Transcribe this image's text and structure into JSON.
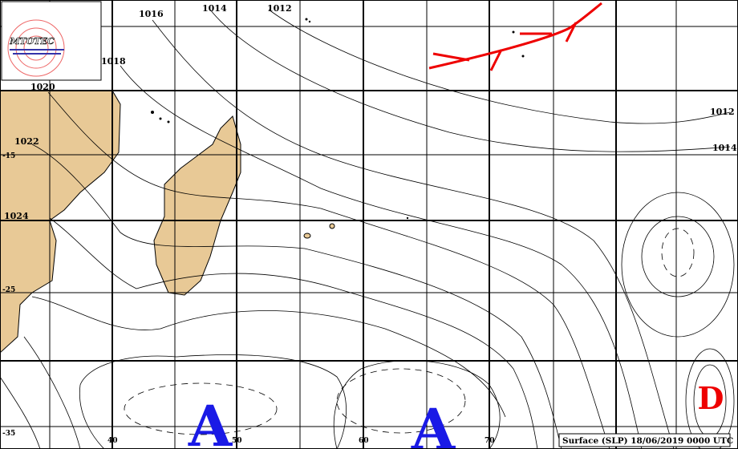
{
  "logo": {
    "text": "MTOTEC"
  },
  "isobar_labels": [
    "1016",
    "1014",
    "1012",
    "1018",
    "1020",
    "1022",
    "1024",
    "1012",
    "1014"
  ],
  "latitude_labels": [
    "-15",
    "-25",
    "-35"
  ],
  "longitude_labels": [
    "40",
    "50",
    "60",
    "70"
  ],
  "pressure_centers": [
    {
      "label": "A"
    },
    {
      "label": "A"
    },
    {
      "label": "D"
    }
  ],
  "caption": "Surface (SLP) 18/06/2019 0000 UTC"
}
